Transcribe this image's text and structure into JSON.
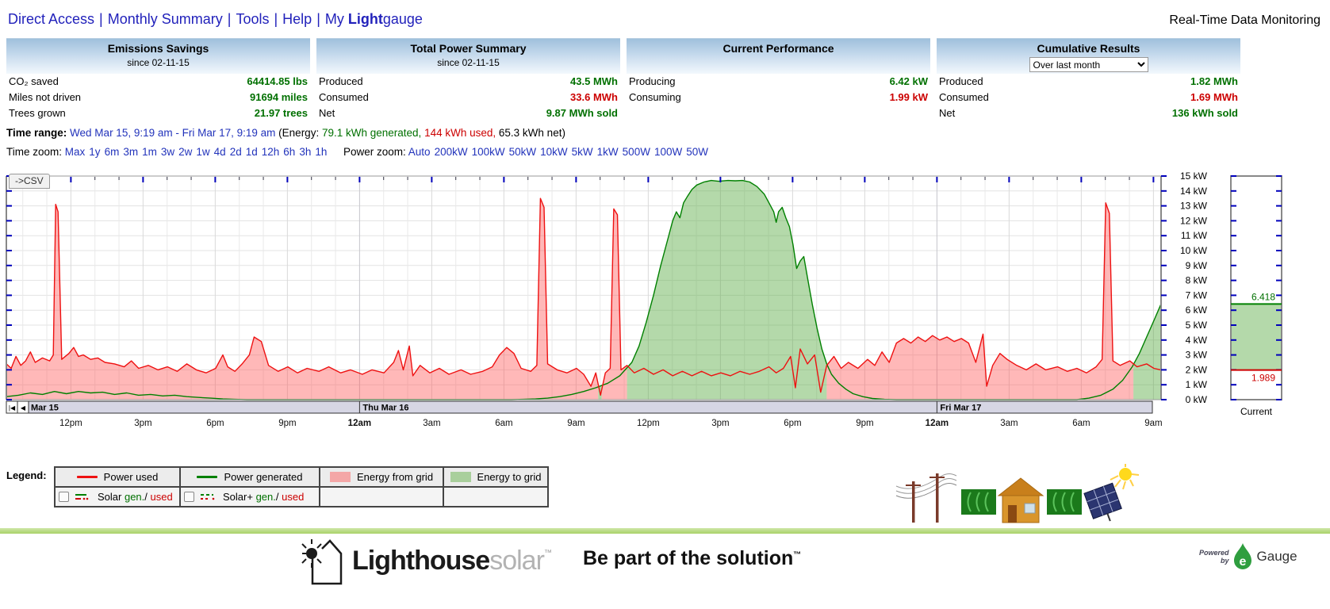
{
  "colors": {
    "green": "#007000",
    "red": "#cc0000",
    "link": "#2222bb"
  },
  "nav": {
    "links": [
      "Direct Access",
      "Monthly Summary",
      "Tools",
      "Help"
    ],
    "separator": "|",
    "my_prefix": "My ",
    "my_bold": "Light",
    "my_rest": "gauge",
    "right_title": "Real-Time Data Monitoring"
  },
  "panels": {
    "emissions": {
      "title": "Emissions Savings",
      "subtitle": "since 02-11-15",
      "rows": [
        {
          "label": "CO₂ saved",
          "value": "64414.85 lbs"
        },
        {
          "label": "Miles not driven",
          "value": "91694 miles"
        },
        {
          "label": "Trees grown",
          "value": "21.97 trees"
        }
      ]
    },
    "total_power": {
      "title": "Total Power Summary",
      "subtitle": "since 02-11-15",
      "produced_label": "Produced",
      "produced": "43.5 MWh",
      "consumed_label": "Consumed",
      "consumed": "33.6 MWh",
      "net_label": "Net",
      "net": "9.87 MWh sold"
    },
    "current_perf": {
      "title": "Current Performance",
      "producing_label": "Producing",
      "producing": "6.42 kW",
      "consuming_label": "Consuming",
      "consuming": "1.99 kW"
    },
    "cumulative": {
      "title": "Cumulative Results",
      "period_option": "Over last month",
      "produced_label": "Produced",
      "produced": "1.82 MWh",
      "consumed_label": "Consumed",
      "consumed": "1.69 MWh",
      "net_label": "Net",
      "net": "136 kWh sold"
    }
  },
  "time_range": {
    "label": "Time range:",
    "range": "Wed Mar 15, 9:19 am - Fri Mar 17, 9:19 am",
    "energy_prefix": "(Energy:",
    "generated": "79.1 kWh generated,",
    "used": "144 kWh used,",
    "net": "65.3 kWh net)"
  },
  "time_zoom": {
    "label": "Time zoom:",
    "options": [
      "Max",
      "1y",
      "6m",
      "3m",
      "1m",
      "3w",
      "2w",
      "1w",
      "4d",
      "2d",
      "1d",
      "12h",
      "6h",
      "3h",
      "1h"
    ]
  },
  "power_zoom": {
    "label": "Power zoom:",
    "options": [
      "Auto",
      "200kW",
      "100kW",
      "50kW",
      "10kW",
      "5kW",
      "1kW",
      "500W",
      "100W",
      "50W"
    ]
  },
  "csv_button": "->CSV",
  "chart_data": {
    "type": "area",
    "x_axis": {
      "start": "Wed Mar 15 9:19 am",
      "end": "Fri Mar 17 9:19 am",
      "hours": 48,
      "grid_offset": 0.683,
      "scroll_buttons": [
        "|◀",
        "◀"
      ],
      "day_markers": [
        {
          "t": 0,
          "label": "Mar 15"
        },
        {
          "t": 14.683,
          "label": "Thu Mar 16"
        },
        {
          "t": 38.683,
          "label": "Fri Mar 17"
        }
      ],
      "tick_labels": [
        {
          "t": 2.683,
          "label": "12pm"
        },
        {
          "t": 5.683,
          "label": "3pm"
        },
        {
          "t": 8.683,
          "label": "6pm"
        },
        {
          "t": 11.683,
          "label": "9pm"
        },
        {
          "t": 14.683,
          "label": "12am",
          "bold": true
        },
        {
          "t": 17.683,
          "label": "3am"
        },
        {
          "t": 20.683,
          "label": "6am"
        },
        {
          "t": 23.683,
          "label": "9am"
        },
        {
          "t": 26.683,
          "label": "12pm"
        },
        {
          "t": 29.683,
          "label": "3pm"
        },
        {
          "t": 32.683,
          "label": "6pm"
        },
        {
          "t": 35.683,
          "label": "9pm"
        },
        {
          "t": 38.683,
          "label": "12am",
          "bold": true
        },
        {
          "t": 41.683,
          "label": "3am"
        },
        {
          "t": 44.683,
          "label": "6am"
        },
        {
          "t": 47.683,
          "label": "9am"
        }
      ]
    },
    "y_axis": {
      "min": 0,
      "max": 15,
      "unit": "kW",
      "tick_step": 1
    },
    "colors": {
      "used": "#ee1111",
      "generated": "#008000",
      "from_grid_fill": "rgba(255,85,85,0.42)",
      "to_grid_fill": "rgba(88,170,66,0.45)"
    },
    "series": [
      {
        "name": "Power used",
        "points": [
          [
            0,
            2.4
          ],
          [
            0.2,
            2.1
          ],
          [
            0.4,
            2.9
          ],
          [
            0.6,
            2.3
          ],
          [
            0.8,
            2.6
          ],
          [
            1.0,
            3.2
          ],
          [
            1.2,
            2.5
          ],
          [
            1.5,
            2.8
          ],
          [
            1.8,
            2.6
          ],
          [
            1.95,
            3.0
          ],
          [
            2.05,
            13.1
          ],
          [
            2.15,
            12.6
          ],
          [
            2.3,
            2.7
          ],
          [
            2.6,
            3.1
          ],
          [
            2.8,
            3.5
          ],
          [
            3.0,
            2.9
          ],
          [
            3.2,
            3.0
          ],
          [
            3.5,
            2.7
          ],
          [
            3.8,
            2.8
          ],
          [
            4.1,
            2.5
          ],
          [
            4.5,
            2.4
          ],
          [
            4.9,
            2.2
          ],
          [
            5.2,
            2.6
          ],
          [
            5.5,
            2.1
          ],
          [
            5.9,
            2.3
          ],
          [
            6.3,
            2.0
          ],
          [
            6.7,
            2.2
          ],
          [
            7.1,
            1.9
          ],
          [
            7.5,
            2.4
          ],
          [
            7.9,
            2.0
          ],
          [
            8.3,
            1.8
          ],
          [
            8.7,
            2.1
          ],
          [
            9.0,
            3.0
          ],
          [
            9.2,
            2.2
          ],
          [
            9.5,
            1.9
          ],
          [
            9.8,
            2.4
          ],
          [
            10.1,
            3.0
          ],
          [
            10.3,
            4.2
          ],
          [
            10.6,
            3.9
          ],
          [
            10.9,
            2.3
          ],
          [
            11.3,
            1.9
          ],
          [
            11.7,
            2.2
          ],
          [
            12.1,
            1.8
          ],
          [
            12.5,
            2.1
          ],
          [
            13.0,
            1.9
          ],
          [
            13.4,
            2.2
          ],
          [
            13.9,
            1.8
          ],
          [
            14.3,
            2.0
          ],
          [
            14.8,
            1.7
          ],
          [
            15.2,
            2.0
          ],
          [
            15.7,
            1.8
          ],
          [
            16.1,
            2.5
          ],
          [
            16.3,
            3.3
          ],
          [
            16.5,
            2.0
          ],
          [
            16.75,
            3.6
          ],
          [
            16.9,
            1.6
          ],
          [
            17.2,
            2.3
          ],
          [
            17.6,
            1.8
          ],
          [
            18.0,
            2.1
          ],
          [
            18.4,
            1.7
          ],
          [
            18.9,
            2.0
          ],
          [
            19.3,
            1.7
          ],
          [
            19.8,
            1.9
          ],
          [
            20.2,
            2.2
          ],
          [
            20.5,
            3.0
          ],
          [
            20.8,
            3.5
          ],
          [
            21.1,
            3.1
          ],
          [
            21.4,
            2.1
          ],
          [
            21.8,
            1.9
          ],
          [
            22.05,
            2.3
          ],
          [
            22.2,
            13.5
          ],
          [
            22.35,
            12.9
          ],
          [
            22.5,
            2.4
          ],
          [
            22.9,
            2.0
          ],
          [
            23.3,
            1.8
          ],
          [
            23.7,
            2.1
          ],
          [
            24.0,
            1.7
          ],
          [
            24.3,
            0.9
          ],
          [
            24.5,
            1.8
          ],
          [
            24.7,
            0.3
          ],
          [
            24.9,
            1.8
          ],
          [
            25.1,
            2.1
          ],
          [
            25.25,
            12.8
          ],
          [
            25.4,
            12.4
          ],
          [
            25.55,
            2.0
          ],
          [
            25.8,
            2.3
          ],
          [
            26.1,
            1.8
          ],
          [
            26.5,
            2.1
          ],
          [
            26.9,
            1.7
          ],
          [
            27.3,
            2.0
          ],
          [
            27.7,
            1.6
          ],
          [
            28.1,
            1.9
          ],
          [
            28.5,
            1.6
          ],
          [
            28.9,
            1.9
          ],
          [
            29.3,
            1.6
          ],
          [
            29.7,
            1.8
          ],
          [
            30.1,
            1.6
          ],
          [
            30.5,
            1.9
          ],
          [
            30.9,
            1.7
          ],
          [
            31.3,
            1.9
          ],
          [
            31.7,
            2.2
          ],
          [
            32.0,
            1.8
          ],
          [
            32.3,
            2.1
          ],
          [
            32.6,
            2.9
          ],
          [
            32.8,
            0.8
          ],
          [
            33.0,
            3.4
          ],
          [
            33.3,
            2.4
          ],
          [
            33.6,
            3.0
          ],
          [
            33.85,
            0.5
          ],
          [
            34.1,
            2.3
          ],
          [
            34.4,
            2.9
          ],
          [
            34.7,
            2.1
          ],
          [
            35.0,
            2.5
          ],
          [
            35.4,
            2.1
          ],
          [
            35.8,
            2.7
          ],
          [
            36.1,
            2.3
          ],
          [
            36.4,
            3.2
          ],
          [
            36.7,
            2.5
          ],
          [
            37.0,
            3.8
          ],
          [
            37.3,
            4.1
          ],
          [
            37.6,
            3.8
          ],
          [
            37.9,
            4.2
          ],
          [
            38.2,
            3.9
          ],
          [
            38.5,
            4.3
          ],
          [
            38.8,
            4.0
          ],
          [
            39.1,
            4.2
          ],
          [
            39.4,
            3.9
          ],
          [
            39.7,
            4.1
          ],
          [
            40.0,
            3.8
          ],
          [
            40.3,
            2.5
          ],
          [
            40.6,
            4.4
          ],
          [
            40.75,
            0.9
          ],
          [
            41.0,
            2.3
          ],
          [
            41.3,
            3.1
          ],
          [
            41.6,
            2.7
          ],
          [
            42.0,
            2.3
          ],
          [
            42.4,
            2.0
          ],
          [
            42.8,
            2.4
          ],
          [
            43.2,
            2.0
          ],
          [
            43.7,
            2.2
          ],
          [
            44.1,
            1.9
          ],
          [
            44.5,
            2.1
          ],
          [
            44.9,
            1.8
          ],
          [
            45.3,
            2.2
          ],
          [
            45.55,
            2.7
          ],
          [
            45.7,
            13.2
          ],
          [
            45.85,
            12.5
          ],
          [
            46.0,
            2.6
          ],
          [
            46.3,
            2.3
          ],
          [
            46.7,
            2.6
          ],
          [
            47.0,
            2.2
          ],
          [
            47.4,
            2.4
          ],
          [
            47.7,
            2.1
          ],
          [
            48,
            1.99
          ]
        ]
      },
      {
        "name": "Power generated",
        "points": [
          [
            0,
            0.2
          ],
          [
            0.5,
            0.3
          ],
          [
            1.0,
            0.45
          ],
          [
            1.5,
            0.35
          ],
          [
            2.0,
            0.55
          ],
          [
            2.5,
            0.4
          ],
          [
            3.0,
            0.55
          ],
          [
            3.5,
            0.45
          ],
          [
            4.0,
            0.5
          ],
          [
            4.5,
            0.35
          ],
          [
            5.0,
            0.45
          ],
          [
            5.5,
            0.3
          ],
          [
            6.0,
            0.35
          ],
          [
            6.5,
            0.25
          ],
          [
            7.0,
            0.3
          ],
          [
            7.5,
            0.2
          ],
          [
            8.0,
            0.15
          ],
          [
            8.5,
            0.1
          ],
          [
            9.0,
            0.05
          ],
          [
            9.5,
            0.02
          ],
          [
            10,
            0
          ],
          [
            21,
            0
          ],
          [
            21.5,
            0.02
          ],
          [
            22,
            0.05
          ],
          [
            22.5,
            0.1
          ],
          [
            23,
            0.2
          ],
          [
            23.5,
            0.35
          ],
          [
            24,
            0.55
          ],
          [
            24.5,
            0.8
          ],
          [
            25,
            1.1
          ],
          [
            25.5,
            1.6
          ],
          [
            26,
            2.5
          ],
          [
            26.3,
            3.6
          ],
          [
            26.6,
            5.2
          ],
          [
            26.9,
            7.0
          ],
          [
            27.2,
            9.0
          ],
          [
            27.5,
            10.8
          ],
          [
            27.7,
            12.0
          ],
          [
            27.85,
            12.6
          ],
          [
            28.0,
            12.2
          ],
          [
            28.15,
            13.2
          ],
          [
            28.3,
            13.6
          ],
          [
            28.5,
            14.1
          ],
          [
            28.7,
            14.4
          ],
          [
            29.0,
            14.6
          ],
          [
            29.3,
            14.7
          ],
          [
            29.6,
            14.65
          ],
          [
            30.0,
            14.7
          ],
          [
            30.3,
            14.68
          ],
          [
            30.6,
            14.7
          ],
          [
            30.9,
            14.6
          ],
          [
            31.2,
            14.3
          ],
          [
            31.5,
            13.8
          ],
          [
            31.7,
            13.2
          ],
          [
            31.9,
            12.6
          ],
          [
            32.0,
            11.9
          ],
          [
            32.1,
            12.6
          ],
          [
            32.25,
            12.9
          ],
          [
            32.4,
            12.2
          ],
          [
            32.55,
            11.6
          ],
          [
            32.7,
            10.4
          ],
          [
            32.85,
            8.8
          ],
          [
            33.0,
            9.3
          ],
          [
            33.15,
            9.6
          ],
          [
            33.3,
            8.2
          ],
          [
            33.5,
            6.4
          ],
          [
            33.7,
            4.8
          ],
          [
            33.9,
            3.4
          ],
          [
            34.1,
            2.4
          ],
          [
            34.3,
            1.7
          ],
          [
            34.6,
            1.1
          ],
          [
            34.9,
            0.7
          ],
          [
            35.2,
            0.4
          ],
          [
            35.6,
            0.2
          ],
          [
            36.0,
            0.08
          ],
          [
            36.5,
            0.02
          ],
          [
            37,
            0
          ],
          [
            44.5,
            0
          ],
          [
            45.0,
            0.1
          ],
          [
            45.5,
            0.3
          ],
          [
            46.0,
            0.7
          ],
          [
            46.4,
            1.3
          ],
          [
            46.8,
            2.2
          ],
          [
            47.1,
            3.1
          ],
          [
            47.4,
            4.2
          ],
          [
            47.7,
            5.3
          ],
          [
            48,
            6.418
          ]
        ]
      }
    ],
    "current": {
      "producing": 6.418,
      "consuming": 1.989,
      "producing_label": "6.418",
      "consuming_label": "1.989",
      "axis_label": "Current"
    }
  },
  "legend": {
    "label": "Legend:",
    "power_used": "Power used",
    "power_generated": "Power generated",
    "energy_from_grid": "Energy from grid",
    "energy_to_grid": "Energy to grid",
    "solar": {
      "prefix": "Solar ",
      "gen": "gen.",
      "slash": "/ ",
      "used": "used"
    },
    "solar_plus": {
      "prefix": "Solar+ ",
      "gen": "gen.",
      "slash": "/ ",
      "used": "used"
    }
  },
  "icons": [
    "power-lines-icon",
    "flow-to-grid-icon",
    "house-icon",
    "flow-from-solar-icon",
    "solar-panel-icon",
    "sun-icon",
    "lighthouse-logo-icon",
    "egauge-droplet-icon"
  ],
  "footer": {
    "brand_bold": "Lighthouse",
    "brand_light": "solar",
    "brand_tm": "™",
    "slogan": "Be part of the solution",
    "slogan_tm": "™",
    "powered_line1": "Powered",
    "powered_line2": "by",
    "egauge_e": "e",
    "egauge_word": "Gauge"
  }
}
